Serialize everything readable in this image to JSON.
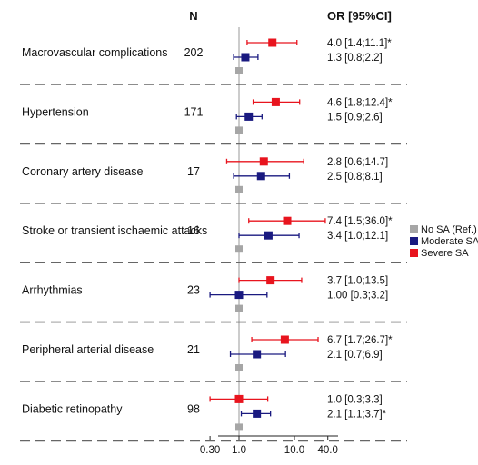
{
  "chart_data": {
    "type": "forest",
    "headers": {
      "n": "N",
      "or": "OR [95%CI]"
    },
    "x_axis": {
      "scale": "log",
      "range": [
        0.2,
        40.0
      ],
      "ticks": [
        "0.30",
        "1.0",
        "10.0",
        "40.0"
      ],
      "reference_line": 1.0
    },
    "legend": {
      "position": "right",
      "items": [
        {
          "name": "No SA (Ref.)",
          "color": "#a6a6a6"
        },
        {
          "name": "Moderate SA",
          "color": "#1a1a80"
        },
        {
          "name": "Severe SA",
          "color": "#e8141e"
        }
      ]
    },
    "rows": [
      {
        "label": "Macrovascular complications",
        "n": "202",
        "severe": {
          "or": 4.0,
          "lo": 1.4,
          "hi": 11.1,
          "text": "4.0 [1.4;11.1]*"
        },
        "moderate": {
          "or": 1.3,
          "lo": 0.8,
          "hi": 2.2,
          "text": "1.3 [0.8;2.2]"
        }
      },
      {
        "label": "Hypertension",
        "n": "171",
        "severe": {
          "or": 4.6,
          "lo": 1.8,
          "hi": 12.4,
          "text": "4.6 [1.8;12.4]*"
        },
        "moderate": {
          "or": 1.5,
          "lo": 0.9,
          "hi": 2.6,
          "text": "1.5 [0.9;2.6]"
        }
      },
      {
        "label": "Coronary artery disease",
        "n": "17",
        "severe": {
          "or": 2.8,
          "lo": 0.6,
          "hi": 14.7,
          "text": "2.8 [0.6;14.7]"
        },
        "moderate": {
          "or": 2.5,
          "lo": 0.8,
          "hi": 8.1,
          "text": "2.5 [0.8;8.1]"
        }
      },
      {
        "label": "Stroke or transient ischaemic attacks",
        "n": "16",
        "severe": {
          "or": 7.4,
          "lo": 1.5,
          "hi": 36.0,
          "text": "7.4 [1.5;36.0]*"
        },
        "moderate": {
          "or": 3.4,
          "lo": 1.0,
          "hi": 12.1,
          "text": "3.4 [1.0;12.1]"
        }
      },
      {
        "label": "Arrhythmias",
        "n": "23",
        "severe": {
          "or": 3.7,
          "lo": 1.0,
          "hi": 13.5,
          "text": "3.7 [1.0;13.5]"
        },
        "moderate": {
          "or": 1.0,
          "lo": 0.3,
          "hi": 3.2,
          "text": "1.00 [0.3;3.2]"
        }
      },
      {
        "label": "Peripheral arterial disease",
        "n": "21",
        "severe": {
          "or": 6.7,
          "lo": 1.7,
          "hi": 26.7,
          "text": "6.7 [1.7;26.7]*"
        },
        "moderate": {
          "or": 2.1,
          "lo": 0.7,
          "hi": 6.9,
          "text": "2.1 [0.7;6.9]"
        }
      },
      {
        "label": "Diabetic retinopathy",
        "n": "98",
        "severe": {
          "or": 1.0,
          "lo": 0.3,
          "hi": 3.3,
          "text": "1.0 [0.3;3.3]"
        },
        "moderate": {
          "or": 2.1,
          "lo": 1.1,
          "hi": 3.7,
          "text": "2.1 [1.1;3.7]*"
        }
      }
    ]
  }
}
